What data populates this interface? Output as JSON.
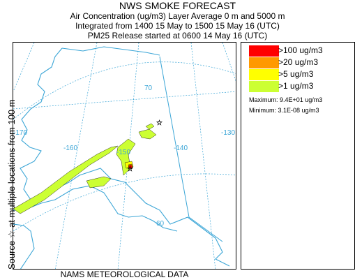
{
  "header": {
    "title": "NWS SMOKE FORECAST",
    "line1": "Air Concentration (ug/m3) Layer Average    0 m  and  5000 m",
    "line2": "Integrated from 1400 15 May to 1500 15 May 16 (UTC)",
    "line3": "PM25 Release started at 0600 14 May 16 (UTC)"
  },
  "side_label": "Source ☆  at multiple locations   from   100 m",
  "map": {
    "lon_labels": [
      "-170",
      "-160",
      "-150",
      "-140",
      "-130"
    ],
    "lat_labels": [
      "70",
      "60"
    ],
    "source_marker": "star-icon",
    "colors": {
      "coast": "#3aa5d6",
      "grid": "#3aa5d6",
      "border": "#3aa5d6",
      "smoke_low": "#ccff33",
      "smoke_mid": "#ffff00",
      "smoke_high": "#ff9900",
      "smoke_max": "#ff0000"
    }
  },
  "legend": {
    "items": [
      {
        "label": ">100 ug/m3",
        "color": "#ff0000"
      },
      {
        "label": ">20 ug/m3",
        "color": "#ff9900"
      },
      {
        "label": ">5 ug/m3",
        "color": "#ffff00"
      },
      {
        "label": ">1 ug/m3",
        "color": "#ccff33"
      }
    ],
    "maximum": "Maximum: 9.4E+01 ug/m3",
    "minimum": "Minimum: 3.1E-08 ug/m3"
  },
  "footer": "NAMS METEOROLOGICAL DATA"
}
